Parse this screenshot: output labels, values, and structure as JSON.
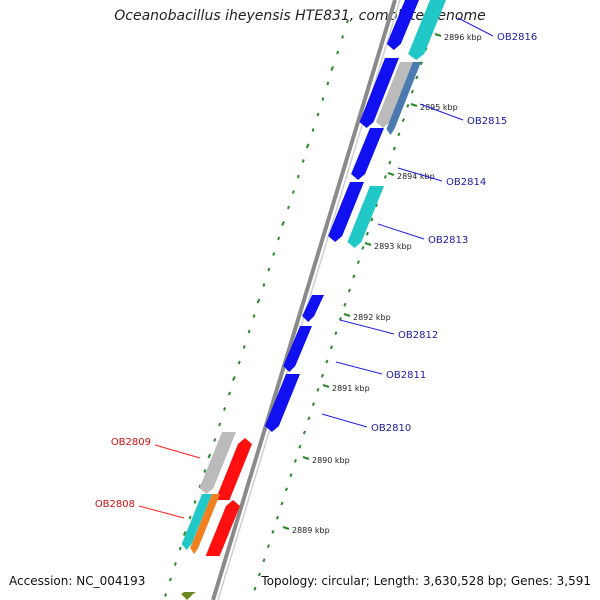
{
  "title": "Oceanobacillus iheyensis HTE831, complete genome",
  "accession": "Accession: NC_004193",
  "topology": "Topology: circular; Length: 3,630,528 bp; Genes: 3,591",
  "colors": {
    "backbone": "#8a8a8a",
    "tick": "#2a8a2a",
    "forward_gene": "#1010f0",
    "cyan_gene": "#20c8c8",
    "gray_gene": "#bbbbbb",
    "steel_gene": "#4a7ab0",
    "red_gene": "#ff1010",
    "orange_gene": "#f08020",
    "olive_gene": "#6a8a20",
    "label_blue": "#1a1aa0",
    "label_red": "#d01010"
  },
  "kbp_ticks": [
    {
      "label": "2896 kbp"
    },
    {
      "label": "2895 kbp"
    },
    {
      "label": "2894 kbp"
    },
    {
      "label": "2893 kbp"
    },
    {
      "label": "2892 kbp"
    },
    {
      "label": "2891 kbp"
    },
    {
      "label": "2890 kbp"
    },
    {
      "label": "2889 kbp"
    }
  ],
  "gene_labels": [
    {
      "text": "OB2816",
      "color": "blue"
    },
    {
      "text": "OB2815",
      "color": "blue"
    },
    {
      "text": "OB2814",
      "color": "blue"
    },
    {
      "text": "OB2813",
      "color": "blue"
    },
    {
      "text": "OB2812",
      "color": "blue"
    },
    {
      "text": "OB2811",
      "color": "blue"
    },
    {
      "text": "OB2810",
      "color": "blue"
    },
    {
      "text": "OB2809",
      "color": "red"
    },
    {
      "text": "OB2808",
      "color": "red"
    }
  ]
}
